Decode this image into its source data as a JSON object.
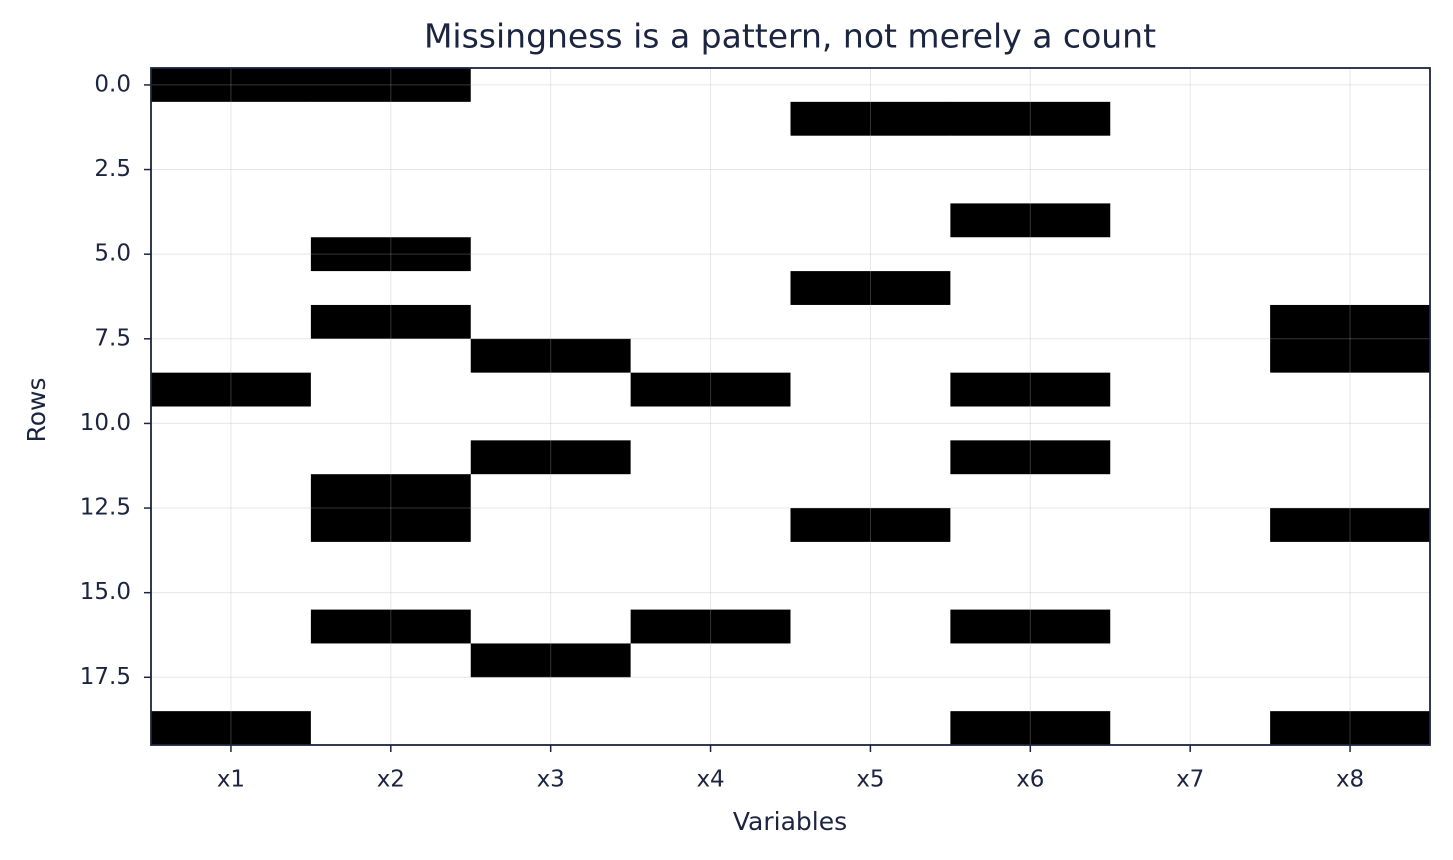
{
  "chart_data": {
    "type": "heatmap",
    "title": "Missingness is a pattern, not merely a count",
    "x_label": "Variables",
    "y_label": "Rows",
    "categories": [
      "x1",
      "x2",
      "x3",
      "x4",
      "x5",
      "x6",
      "x7",
      "x8"
    ],
    "ylim": [
      19.5,
      -0.5
    ],
    "yticks": [
      {
        "value": 0,
        "label": "0.0"
      },
      {
        "value": 2.5,
        "label": "2.5"
      },
      {
        "value": 5,
        "label": "5.0"
      },
      {
        "value": 7.5,
        "label": "7.5"
      },
      {
        "value": 10,
        "label": "10.0"
      },
      {
        "value": 12.5,
        "label": "12.5"
      },
      {
        "value": 15,
        "label": "15.0"
      },
      {
        "value": 17.5,
        "label": "17.5"
      }
    ],
    "cmap": [
      "#ffffff",
      "#000000"
    ],
    "grid": true,
    "values": [
      [
        1,
        1,
        0,
        0,
        0,
        0,
        0,
        0
      ],
      [
        0,
        0,
        0,
        0,
        1,
        1,
        0,
        0
      ],
      [
        0,
        0,
        0,
        0,
        0,
        0,
        0,
        0
      ],
      [
        0,
        0,
        0,
        0,
        0,
        0,
        0,
        0
      ],
      [
        0,
        0,
        0,
        0,
        0,
        1,
        0,
        0
      ],
      [
        0,
        1,
        0,
        0,
        0,
        0,
        0,
        0
      ],
      [
        0,
        0,
        0,
        0,
        1,
        0,
        0,
        0
      ],
      [
        0,
        1,
        0,
        0,
        0,
        0,
        0,
        1
      ],
      [
        0,
        0,
        1,
        0,
        0,
        0,
        0,
        1
      ],
      [
        1,
        0,
        0,
        1,
        0,
        1,
        0,
        0
      ],
      [
        0,
        0,
        0,
        0,
        0,
        0,
        0,
        0
      ],
      [
        0,
        0,
        1,
        0,
        0,
        1,
        0,
        0
      ],
      [
        0,
        1,
        0,
        0,
        0,
        0,
        0,
        0
      ],
      [
        0,
        1,
        0,
        0,
        1,
        0,
        0,
        1
      ],
      [
        0,
        0,
        0,
        0,
        0,
        0,
        0,
        0
      ],
      [
        0,
        0,
        0,
        0,
        0,
        0,
        0,
        0
      ],
      [
        0,
        1,
        0,
        1,
        0,
        1,
        0,
        0
      ],
      [
        0,
        0,
        1,
        0,
        0,
        0,
        0,
        0
      ],
      [
        0,
        0,
        0,
        0,
        0,
        0,
        0,
        0
      ],
      [
        1,
        0,
        0,
        0,
        0,
        1,
        0,
        1
      ]
    ]
  }
}
